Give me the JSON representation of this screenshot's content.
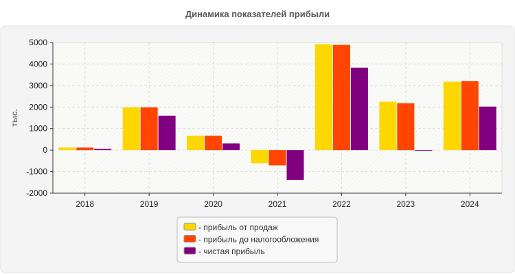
{
  "chart_data": {
    "type": "bar",
    "title": "Динамика показателей прибыли",
    "xlabel": "",
    "ylabel": "тыс.",
    "ylim": [
      -2000,
      5000
    ],
    "yticks": [
      5000,
      4000,
      3000,
      2000,
      1000,
      0,
      -1000,
      -2000
    ],
    "grid": true,
    "legend_position": "bottom",
    "categories": [
      "2018",
      "2019",
      "2020",
      "2021",
      "2022",
      "2023",
      "2024"
    ],
    "series": [
      {
        "name": "прибыль от продаж",
        "color": "#FFD700",
        "values": [
          120,
          1990,
          670,
          -610,
          4920,
          2250,
          3180
        ]
      },
      {
        "name": "прибыль до налогообложения",
        "color": "#FF4500",
        "values": [
          120,
          1990,
          670,
          -710,
          4890,
          2180,
          3210
        ]
      },
      {
        "name": "чистая прибыль",
        "color": "#800080",
        "values": [
          55,
          1600,
          310,
          -1390,
          3830,
          -30,
          2020
        ]
      }
    ]
  }
}
